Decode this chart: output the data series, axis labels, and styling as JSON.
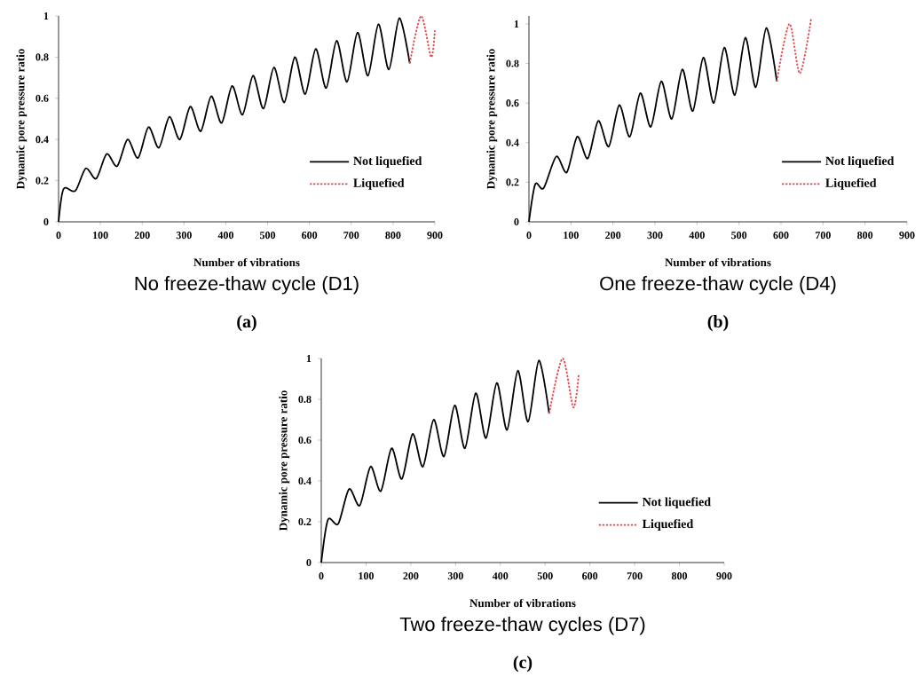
{
  "chart_data": [
    {
      "type": "line",
      "title": "No freeze-thaw cycle (D1)",
      "subtitle": "(a)",
      "xlabel": "Number of vibrations",
      "ylabel": "Dynamic pore pressure ratio",
      "xlim": [
        0,
        900
      ],
      "xticks": [
        0,
        100,
        200,
        300,
        400,
        500,
        600,
        700,
        800,
        900
      ],
      "ylim": [
        0,
        1
      ],
      "yticks": [
        0,
        0.2,
        0.4,
        0.6,
        0.8,
        1
      ],
      "legend": "bottom right",
      "series": [
        {
          "name": "Not liquefied",
          "color": "#000000",
          "line_style": "solid",
          "x": [
            0,
            12,
            40,
            65,
            90,
            115,
            140,
            165,
            190,
            215,
            240,
            265,
            290,
            315,
            340,
            365,
            390,
            415,
            440,
            465,
            490,
            515,
            540,
            565,
            590,
            615,
            640,
            665,
            690,
            715,
            740,
            765,
            790,
            815,
            840
          ],
          "values": [
            0,
            0.16,
            0.15,
            0.26,
            0.21,
            0.33,
            0.27,
            0.4,
            0.31,
            0.46,
            0.36,
            0.51,
            0.4,
            0.56,
            0.44,
            0.61,
            0.48,
            0.66,
            0.52,
            0.71,
            0.55,
            0.75,
            0.58,
            0.8,
            0.62,
            0.84,
            0.65,
            0.88,
            0.68,
            0.92,
            0.71,
            0.96,
            0.74,
            0.99,
            0.77
          ]
        },
        {
          "name": "Liquefied",
          "color": "#e8474c",
          "line_style": "dotted",
          "x": [
            840,
            867,
            891,
            900
          ],
          "values": [
            0.77,
            1.0,
            0.8,
            0.93
          ]
        }
      ]
    },
    {
      "type": "line",
      "title": "One freeze-thaw cycle (D4)",
      "subtitle": "(b)",
      "xlabel": "Number of vibrations",
      "ylabel": "Dynamic pore pressure ratio",
      "xlim": [
        0,
        900
      ],
      "xticks": [
        0,
        100,
        200,
        300,
        400,
        500,
        600,
        700,
        800,
        900
      ],
      "ylim": [
        0,
        1.04
      ],
      "yticks": [
        0,
        0.2,
        0.4,
        0.6,
        0.8,
        1
      ],
      "legend": "bottom right",
      "series": [
        {
          "name": "Not liquefied",
          "color": "#000000",
          "line_style": "solid",
          "x": [
            0,
            15,
            35,
            65,
            90,
            115,
            140,
            165,
            190,
            215,
            240,
            265,
            290,
            315,
            340,
            365,
            390,
            415,
            440,
            465,
            490,
            515,
            540,
            565,
            590
          ],
          "values": [
            0,
            0.19,
            0.17,
            0.33,
            0.25,
            0.43,
            0.32,
            0.51,
            0.38,
            0.59,
            0.43,
            0.65,
            0.48,
            0.71,
            0.52,
            0.77,
            0.56,
            0.83,
            0.6,
            0.88,
            0.64,
            0.93,
            0.68,
            0.98,
            0.71
          ]
        },
        {
          "name": "Liquefied",
          "color": "#e8474c",
          "line_style": "dotted",
          "x": [
            590,
            620,
            645,
            672
          ],
          "values": [
            0.71,
            1.0,
            0.75,
            1.03
          ]
        }
      ]
    },
    {
      "type": "line",
      "title": "Two freeze-thaw cycles (D7)",
      "subtitle": "(c)",
      "xlabel": "Number of vibrations",
      "ylabel": "Dynamic pore pressure ratio",
      "xlim": [
        0,
        900
      ],
      "xticks": [
        0,
        100,
        200,
        300,
        400,
        500,
        600,
        700,
        800,
        900
      ],
      "ylim": [
        0,
        1
      ],
      "yticks": [
        0,
        0.2,
        0.4,
        0.6,
        0.8,
        1
      ],
      "legend": "bottom right",
      "series": [
        {
          "name": "Not liquefied",
          "color": "#000000",
          "line_style": "solid",
          "x": [
            0,
            15,
            38,
            62,
            86,
            110,
            133,
            157,
            180,
            204,
            227,
            251,
            274,
            298,
            321,
            345,
            368,
            392,
            415,
            439,
            462,
            486,
            509
          ],
          "values": [
            0,
            0.21,
            0.19,
            0.36,
            0.28,
            0.47,
            0.35,
            0.56,
            0.41,
            0.63,
            0.47,
            0.7,
            0.52,
            0.77,
            0.56,
            0.83,
            0.61,
            0.88,
            0.65,
            0.94,
            0.69,
            0.99,
            0.73
          ]
        },
        {
          "name": "Liquefied",
          "color": "#e8474c",
          "line_style": "dotted",
          "x": [
            509,
            539,
            563,
            575
          ],
          "values": [
            0.73,
            1.0,
            0.76,
            0.92
          ]
        }
      ]
    }
  ]
}
